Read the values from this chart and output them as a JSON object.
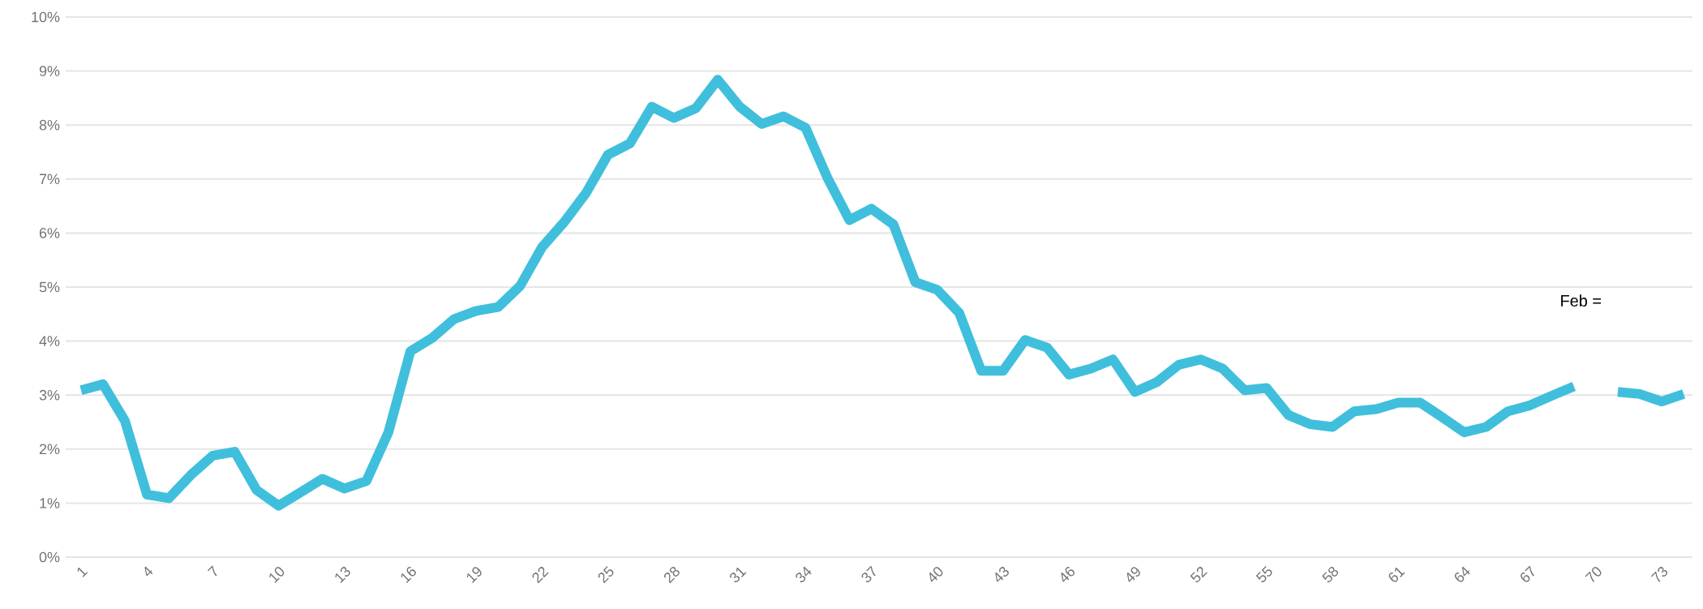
{
  "chart_data": {
    "type": "line",
    "categories": [
      "1",
      null,
      null,
      "4",
      null,
      null,
      "7",
      null,
      null,
      "10",
      null,
      null,
      "13",
      null,
      null,
      "16",
      null,
      null,
      "19",
      null,
      null,
      "22",
      null,
      null,
      "25",
      null,
      null,
      "28",
      null,
      null,
      "31",
      null,
      null,
      "34",
      null,
      null,
      "37",
      null,
      null,
      "40",
      null,
      null,
      "43",
      null,
      null,
      "46",
      null,
      null,
      "49",
      null,
      null,
      "52",
      null,
      null,
      "55",
      null,
      null,
      "58",
      null,
      null,
      "61",
      null,
      null,
      "64",
      null,
      null,
      "67",
      null,
      null,
      "70",
      null,
      null,
      "73",
      null
    ],
    "series": [
      {
        "color": "#40bfdc",
        "values": [
          3.09,
          3.2,
          2.52,
          1.16,
          1.09,
          1.52,
          1.88,
          1.95,
          1.24,
          0.95,
          1.2,
          1.45,
          1.27,
          1.41,
          2.31,
          3.81,
          4.06,
          4.41,
          4.56,
          4.63,
          5.02,
          5.74,
          6.2,
          6.74,
          7.45,
          7.66,
          8.34,
          8.13,
          8.31,
          8.84,
          8.34,
          8.02,
          8.16,
          7.95,
          7.02,
          6.24,
          6.45,
          6.16,
          5.09,
          4.95,
          4.52,
          3.45,
          3.45,
          4.02,
          3.88,
          3.38,
          3.49,
          3.66,
          3.06,
          3.24,
          3.56,
          3.66,
          3.49,
          3.09,
          3.13,
          2.63,
          2.46,
          2.41,
          2.7,
          2.74,
          2.86,
          2.86,
          2.59,
          2.31,
          2.41,
          2.7,
          2.81,
          2.99,
          3.16,
          null,
          3.06,
          3.02,
          2.88,
          3.02
        ]
      }
    ],
    "ylim": [
      0,
      10
    ],
    "yticks": [
      {
        "value": 0,
        "label": "0%"
      },
      {
        "value": 1,
        "label": "1%"
      },
      {
        "value": 2,
        "label": "2%"
      },
      {
        "value": 3,
        "label": "3%"
      },
      {
        "value": 4,
        "label": "4%"
      },
      {
        "value": 5,
        "label": "5%"
      },
      {
        "value": 6,
        "label": "6%"
      },
      {
        "value": 7,
        "label": "7%"
      },
      {
        "value": 8,
        "label": "8%"
      },
      {
        "value": 9,
        "label": "9%"
      },
      {
        "value": 10,
        "label": "10%"
      }
    ],
    "grid": "y",
    "annotations": [
      "Feb ="
    ]
  }
}
